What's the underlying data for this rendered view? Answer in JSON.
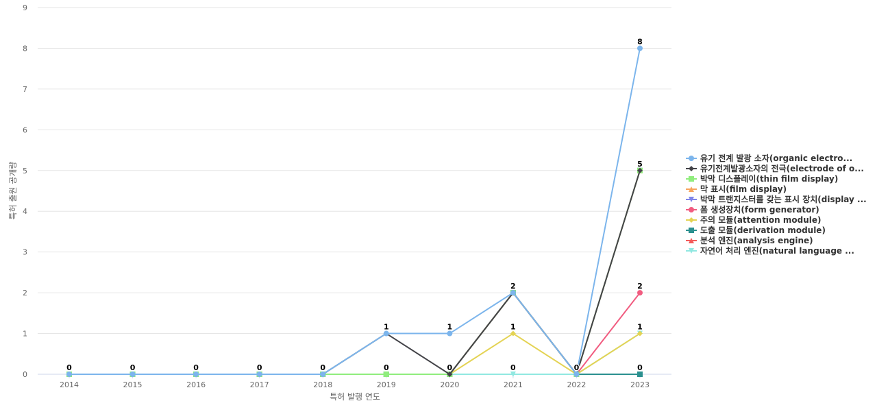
{
  "chart_data": {
    "type": "line",
    "xlabel": "특허 발행 연도",
    "ylabel": "특허 출원 공개량",
    "ylim": [
      0,
      9
    ],
    "yticks": [
      "0",
      "1",
      "2",
      "3",
      "4",
      "5",
      "6",
      "7",
      "8",
      "9"
    ],
    "categories": [
      "2014",
      "2015",
      "2016",
      "2017",
      "2018",
      "2019",
      "2020",
      "2021",
      "2022",
      "2023"
    ],
    "grid": true,
    "legend_position": "right",
    "series": [
      {
        "name": "유기 전계 발광 소자(organic electro...",
        "color": "#7cb5ec",
        "marker": "circle",
        "values": [
          0,
          0,
          0,
          0,
          0,
          1,
          1,
          2,
          0,
          8
        ]
      },
      {
        "name": "유기전계발광소자의 전극(electrode of o...",
        "color": "#434348",
        "marker": "diamond",
        "values": [
          0,
          0,
          0,
          0,
          0,
          1,
          0,
          2,
          0,
          5
        ]
      },
      {
        "name": "박막 디스플레이(thin film display)",
        "color": "#90ed7d",
        "marker": "square",
        "values": [
          0,
          0,
          0,
          0,
          0,
          0,
          0,
          2,
          0,
          5
        ]
      },
      {
        "name": "막 표시(film display)",
        "color": "#f7a35c",
        "marker": "triangle",
        "values": [
          0,
          0,
          0,
          0,
          0,
          0,
          0,
          2,
          0,
          5
        ]
      },
      {
        "name": "박막 트랜지스터를 갖는 표시 장치(display ...",
        "color": "#8085e9",
        "marker": "triangle-down",
        "values": [
          0,
          0,
          0,
          0,
          0,
          0,
          0,
          2,
          0,
          5
        ]
      },
      {
        "name": "폼 생성장치(form generator)",
        "color": "#f15c80",
        "marker": "circle",
        "values": [
          0,
          0,
          0,
          0,
          0,
          0,
          0,
          2,
          0,
          2
        ]
      },
      {
        "name": "주의 모듈(attention module)",
        "color": "#e4d354",
        "marker": "diamond",
        "values": [
          0,
          0,
          0,
          0,
          0,
          0,
          0,
          1,
          0,
          1
        ]
      },
      {
        "name": "도출 모듈(derivation module)",
        "color": "#2b908f",
        "marker": "square",
        "values": [
          0,
          0,
          0,
          0,
          0,
          0,
          0,
          2,
          0,
          0
        ]
      },
      {
        "name": "분석 엔진(analysis engine)",
        "color": "#f45b5b",
        "marker": "triangle",
        "values": [
          0,
          0,
          0,
          0,
          0,
          0,
          0,
          2,
          0,
          0
        ]
      },
      {
        "name": "자연어 처리 엔진(natural language ...",
        "color": "#91e8e1",
        "marker": "triangle-down",
        "values": [
          0,
          0,
          0,
          0,
          0,
          0,
          0,
          0,
          0,
          1
        ]
      }
    ],
    "data_labels": [
      {
        "category": "2014",
        "text": "0",
        "value": 0
      },
      {
        "category": "2015",
        "text": "0",
        "value": 0
      },
      {
        "category": "2016",
        "text": "0",
        "value": 0
      },
      {
        "category": "2017",
        "text": "0",
        "value": 0
      },
      {
        "category": "2018",
        "text": "0",
        "value": 0
      },
      {
        "category": "2019",
        "text": "1",
        "value": 1
      },
      {
        "category": "2019",
        "text": "0",
        "value": 0
      },
      {
        "category": "2020",
        "text": "1",
        "value": 1
      },
      {
        "category": "2020",
        "text": "0",
        "value": 0
      },
      {
        "category": "2021",
        "text": "2",
        "value": 2
      },
      {
        "category": "2021",
        "text": "1",
        "value": 1
      },
      {
        "category": "2021",
        "text": "0",
        "value": 0
      },
      {
        "category": "2022",
        "text": "0",
        "value": 0
      },
      {
        "category": "2023",
        "text": "8",
        "value": 8
      },
      {
        "category": "2023",
        "text": "5",
        "value": 5
      },
      {
        "category": "2023",
        "text": "2",
        "value": 2
      },
      {
        "category": "2023",
        "text": "1",
        "value": 1
      },
      {
        "category": "2023",
        "text": "0",
        "value": 0
      }
    ]
  }
}
